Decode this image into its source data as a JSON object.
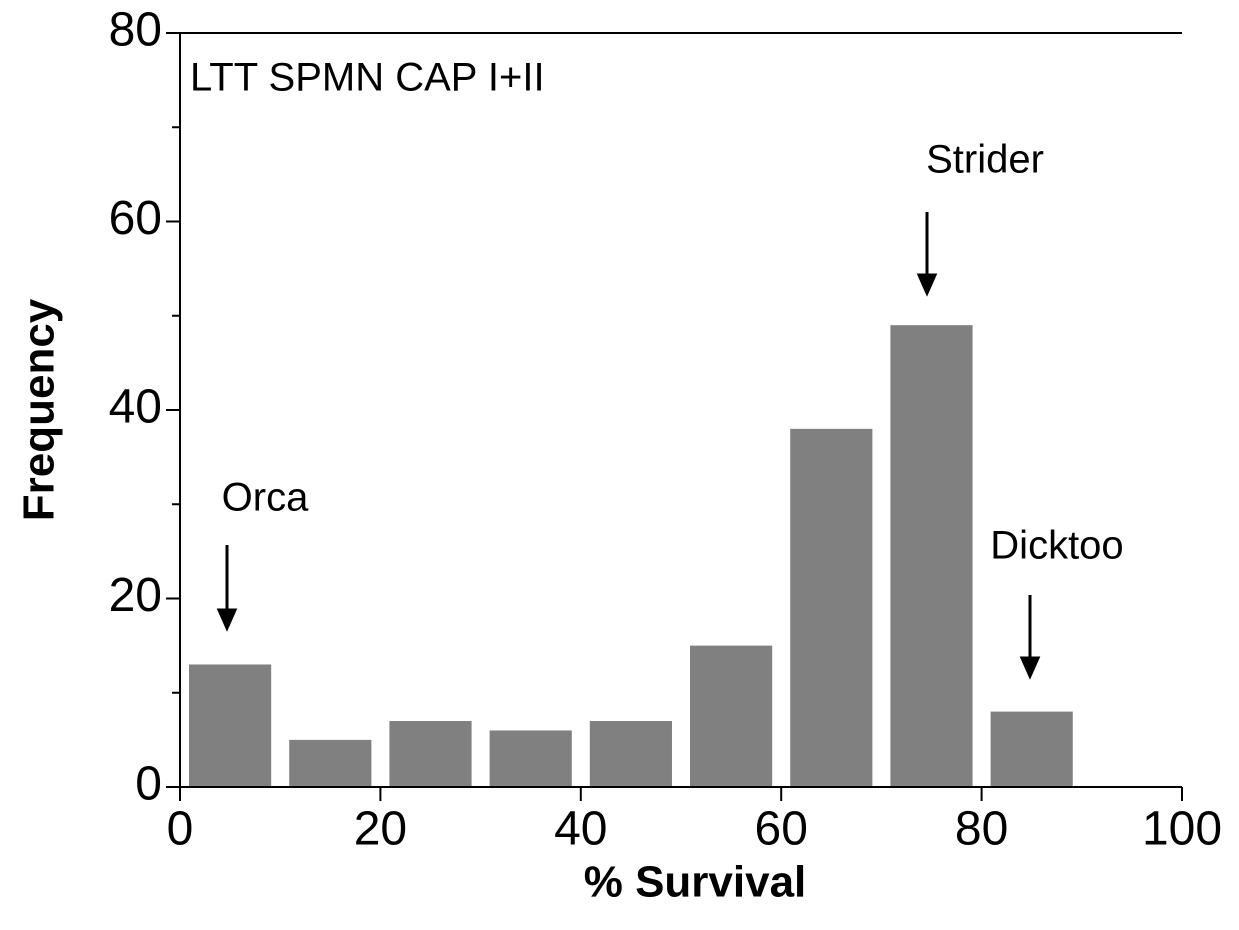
{
  "chart_data": {
    "type": "histogram",
    "xlabel": "% Survival",
    "ylabel": "Frequency",
    "annotations": [
      "LTT SPMN CAP I+II",
      "Orca",
      "Strider",
      "Dicktoo"
    ],
    "bins": [
      0,
      10,
      20,
      30,
      40,
      50,
      60,
      70,
      80,
      90,
      100
    ],
    "values": [
      13,
      5,
      7,
      6,
      7,
      15,
      38,
      49,
      8,
      0
    ],
    "color": "#808080",
    "xlim": [
      0,
      100
    ],
    "xticks": [
      0,
      20,
      40,
      60,
      80,
      100
    ],
    "ylim": [
      0,
      80
    ],
    "yticks": [
      0,
      20,
      40,
      60,
      80
    ],
    "yticks_minor": [
      10,
      30,
      50,
      70
    ]
  }
}
